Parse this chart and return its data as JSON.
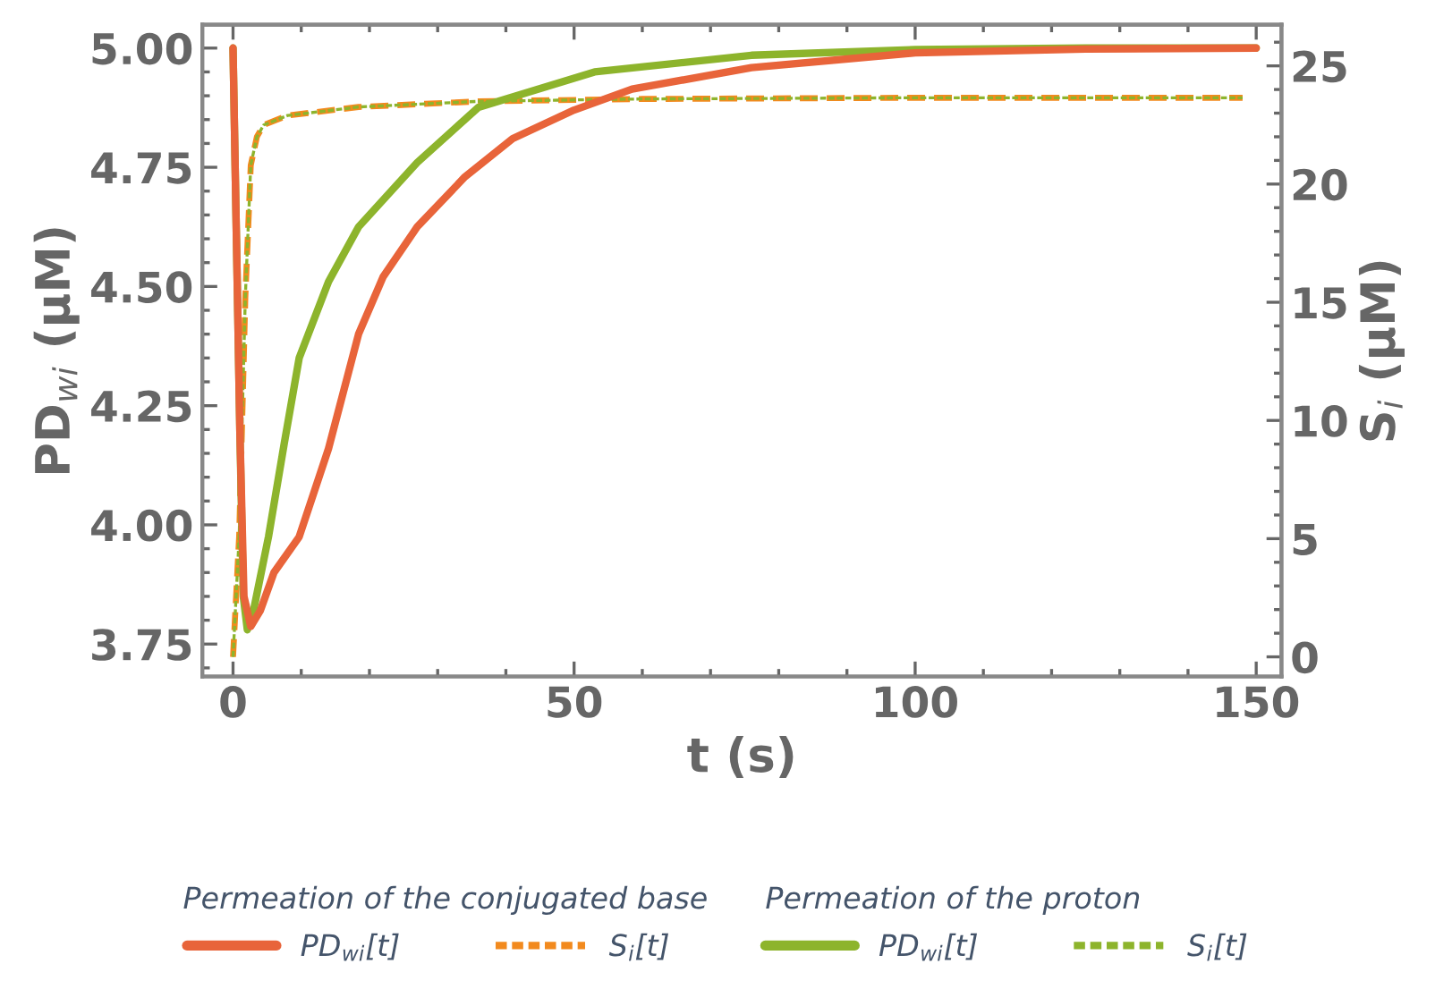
{
  "chart_data": {
    "type": "line",
    "xlabel": "t (s)",
    "ylabel": "PD$_{wi}$ (μM)",
    "y2label": "S$_{i}$ (μM)",
    "xlim": [
      -4.5,
      153.7
    ],
    "xticks": [
      0,
      50,
      100,
      150
    ],
    "ylim": [
      3.682,
      5.049
    ],
    "yticks": [
      3.75,
      {
        "value": 4.0,
        "label": "4.00"
      },
      4.25,
      {
        "value": 4.5,
        "label": "4.50"
      },
      4.75,
      {
        "value": 5.0,
        "label": "5.00"
      }
    ],
    "y2lim": [
      -0.83,
      26.74
    ],
    "y2ticks": [
      0,
      5,
      10,
      15,
      20,
      25
    ],
    "grid": false,
    "legend": "bottom",
    "annotations": [
      "Permeation of the conjugated base",
      "Permeation of the proton"
    ],
    "series": [
      {
        "name": "PD$_{wi}$[t]",
        "color": "#e8643a",
        "line_style": "solid",
        "x": [
          0,
          0.5,
          1,
          1.6,
          2.6,
          4,
          6,
          9.7,
          14,
          18.4,
          22,
          27,
          34,
          41,
          50,
          58.5,
          76,
          100,
          125,
          150
        ],
        "values": [
          5.0,
          4.6,
          4.2,
          3.85,
          3.787,
          3.82,
          3.9,
          3.975,
          4.16,
          4.4,
          4.52,
          4.625,
          4.73,
          4.81,
          4.87,
          4.914,
          4.959,
          4.99,
          4.998,
          5.0
        ]
      },
      {
        "name": "S$_{i}$[t]",
        "color": "#f28a1e",
        "line_style": "dashed",
        "axis": "y2",
        "x": [
          0,
          0.9,
          1.8,
          2.6,
          3.5,
          4.5,
          8,
          18.4,
          36,
          60,
          100,
          148
        ],
        "values": [
          0,
          5.1,
          15.2,
          20.8,
          22.0,
          22.5,
          22.9,
          23.26,
          23.5,
          23.6,
          23.65,
          23.65
        ]
      },
      {
        "name": "PD$_{wi}$[t]",
        "color": "#8db42c",
        "line_style": "solid",
        "x": [
          0,
          0.5,
          1,
          1.5,
          2.1,
          3,
          5.2,
          7.5,
          9.7,
          14,
          18.4,
          27,
          36,
          53,
          76,
          100,
          125,
          150
        ],
        "values": [
          5.0,
          4.6,
          4.2,
          3.85,
          3.78,
          3.82,
          3.975,
          4.17,
          4.35,
          4.51,
          4.625,
          4.76,
          4.876,
          4.95,
          4.985,
          4.997,
          5.0,
          5.0
        ]
      },
      {
        "name": "S$_{i}$[t]",
        "color": "#8db42c",
        "line_style": "dashed",
        "axis": "y2",
        "x": [
          0,
          0.9,
          1.8,
          2.6,
          3.5,
          4.5,
          8,
          18.4,
          36,
          60,
          100,
          148
        ],
        "values": [
          0,
          5.1,
          15.2,
          20.8,
          22.0,
          22.5,
          22.9,
          23.26,
          23.5,
          23.6,
          23.65,
          23.65
        ]
      }
    ]
  }
}
